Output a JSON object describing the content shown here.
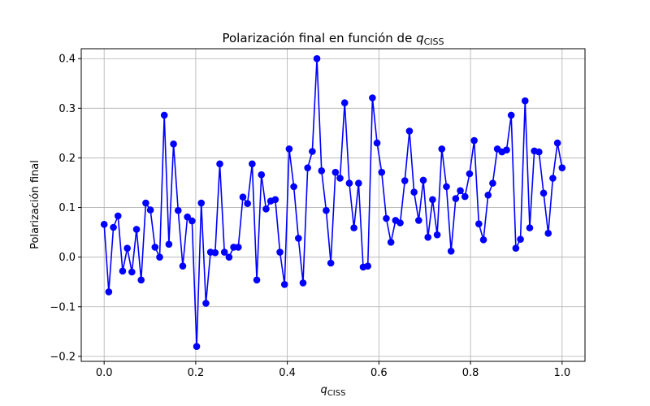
{
  "chart_data": {
    "type": "line",
    "title": "Polarización final en función de",
    "title_symbol": "q",
    "title_subscript": "CISS",
    "xlabel_symbol": "q",
    "xlabel_subscript": "CISS",
    "ylabel": "Polarización final",
    "xlim": [
      -0.05,
      1.05
    ],
    "ylim": [
      -0.21,
      0.42
    ],
    "xticks": [
      0.0,
      0.2,
      0.4,
      0.6,
      0.8,
      1.0
    ],
    "xtick_labels": [
      "0.0",
      "0.2",
      "0.4",
      "0.6",
      "0.8",
      "1.0"
    ],
    "yticks": [
      -0.2,
      -0.1,
      0.0,
      0.1,
      0.2,
      0.3,
      0.4
    ],
    "ytick_labels": [
      "−0.2",
      "−0.1",
      "0.0",
      "0.1",
      "0.2",
      "0.3",
      "0.4"
    ],
    "grid": true,
    "color": "#0000ff",
    "marker": "circle",
    "x_start": 0.0,
    "x_end": 1.0,
    "values": [
      0.066,
      -0.07,
      0.06,
      0.083,
      -0.028,
      0.018,
      -0.03,
      0.056,
      -0.046,
      0.109,
      0.095,
      0.02,
      0.0,
      0.286,
      0.026,
      0.228,
      0.094,
      -0.018,
      0.081,
      0.073,
      -0.18,
      0.109,
      -0.093,
      0.01,
      0.009,
      0.188,
      0.01,
      0.0,
      0.02,
      0.02,
      0.121,
      0.108,
      0.188,
      -0.046,
      0.166,
      0.097,
      0.113,
      0.116,
      0.01,
      -0.055,
      0.218,
      0.142,
      0.038,
      -0.052,
      0.18,
      0.213,
      0.4,
      0.174,
      0.094,
      -0.012,
      0.171,
      0.159,
      0.311,
      0.149,
      0.059,
      0.149,
      -0.02,
      -0.018,
      0.321,
      0.23,
      0.171,
      0.078,
      0.03,
      0.074,
      0.069,
      0.154,
      0.254,
      0.131,
      0.074,
      0.155,
      0.04,
      0.116,
      0.045,
      0.218,
      0.142,
      0.012,
      0.118,
      0.134,
      0.122,
      0.168,
      0.235,
      0.067,
      0.035,
      0.125,
      0.149,
      0.218,
      0.212,
      0.216,
      0.286,
      0.018,
      0.036,
      0.315,
      0.059,
      0.214,
      0.212,
      0.129,
      0.048,
      0.159,
      0.23,
      0.18
    ]
  }
}
